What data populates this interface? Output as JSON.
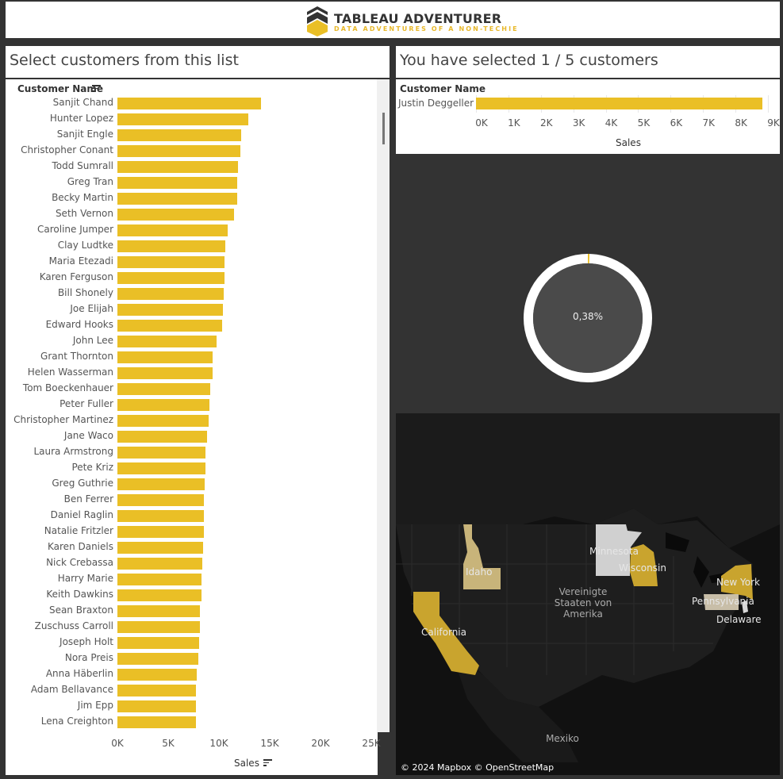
{
  "header": {
    "logo_title": "TABLEAU ADVENTURER",
    "logo_subtitle": "DATA ADVENTURES OF A NON-TECHIE",
    "logo_icon": "yellow-black-chevron-shield-logo",
    "colors": {
      "accent": "#eabf26",
      "dark": "#333333"
    }
  },
  "left_panel": {
    "title": "Select customers from this list",
    "column_header": "Customer Name",
    "sort_icon": "sort-descending-icon"
  },
  "right_panel": {
    "title": "You have selected 1 / 5 customers",
    "column_header": "Customer Name"
  },
  "donut": {
    "label": "0,38%",
    "value_fraction": 0.0038,
    "colors": {
      "ring": "#ffffff",
      "highlight": "#eabf26",
      "center": "#4a4a4a"
    }
  },
  "map": {
    "copyright": "© 2024 Mapbox © OpenStreetMap",
    "country_labels": [
      "Vereinigte Staaten von Amerika",
      "Mexiko"
    ],
    "states": [
      {
        "name": "Idaho",
        "color": "#c8b47a"
      },
      {
        "name": "California",
        "color": "#c9a42e"
      },
      {
        "name": "Minnesota",
        "color": "#d0d0d0"
      },
      {
        "name": "Wisconsin",
        "color": "#c9a42e"
      },
      {
        "name": "New York",
        "color": "#c9a42e"
      },
      {
        "name": "Pennsylvania",
        "color": "#c8bea8"
      },
      {
        "name": "Delaware",
        "color": "#d8d8d8"
      }
    ]
  },
  "chart_data": [
    {
      "type": "bar",
      "orientation": "horizontal",
      "categories": [
        "Sanjit Chand",
        "Hunter Lopez",
        "Sanjit Engle",
        "Christopher Conant",
        "Todd Sumrall",
        "Greg Tran",
        "Becky Martin",
        "Seth Vernon",
        "Caroline Jumper",
        "Clay Ludtke",
        "Maria Etezadi",
        "Karen Ferguson",
        "Bill Shonely",
        "Joe Elijah",
        "Edward Hooks",
        "John Lee",
        "Grant Thornton",
        "Helen Wasserman",
        "Tom Boeckenhauer",
        "Peter Fuller",
        "Christopher Martinez",
        "Jane Waco",
        "Laura Armstrong",
        "Pete Kriz",
        "Greg Guthrie",
        "Ben Ferrer",
        "Daniel Raglin",
        "Natalie Fritzler",
        "Karen Daniels",
        "Nick Crebassa",
        "Harry Marie",
        "Keith Dawkins",
        "Sean Braxton",
        "Zuschuss Carroll",
        "Joseph Holt",
        "Nora Preis",
        "Anna Häberlin",
        "Adam Bellavance",
        "Jim Epp",
        "Lena Creighton"
      ],
      "values": [
        14142,
        12873,
        12209,
        12129,
        11892,
        11820,
        11790,
        11471,
        10880,
        10664,
        10549,
        10523,
        10502,
        10423,
        10310,
        9800,
        9351,
        9359,
        9134,
        9083,
        8954,
        8799,
        8673,
        8647,
        8570,
        8526,
        8517,
        8497,
        8445,
        8362,
        8303,
        8306,
        8134,
        8143,
        8079,
        7979,
        7831,
        7730,
        7768,
        7705
      ],
      "xlabel": "Sales",
      "ticks": [
        "0K",
        "5K",
        "10K",
        "15K",
        "20K",
        "25K"
      ],
      "xlim": [
        0,
        25000
      ],
      "color": "#eabf26"
    },
    {
      "type": "bar",
      "orientation": "horizontal",
      "categories": [
        "Justin Deggeller"
      ],
      "values": [
        8828
      ],
      "xlabel": "Sales",
      "ticks": [
        "0K",
        "1K",
        "2K",
        "3K",
        "4K",
        "5K",
        "6K",
        "7K",
        "8K",
        "9K"
      ],
      "xlim": [
        0,
        9000
      ],
      "color": "#eabf26"
    }
  ]
}
